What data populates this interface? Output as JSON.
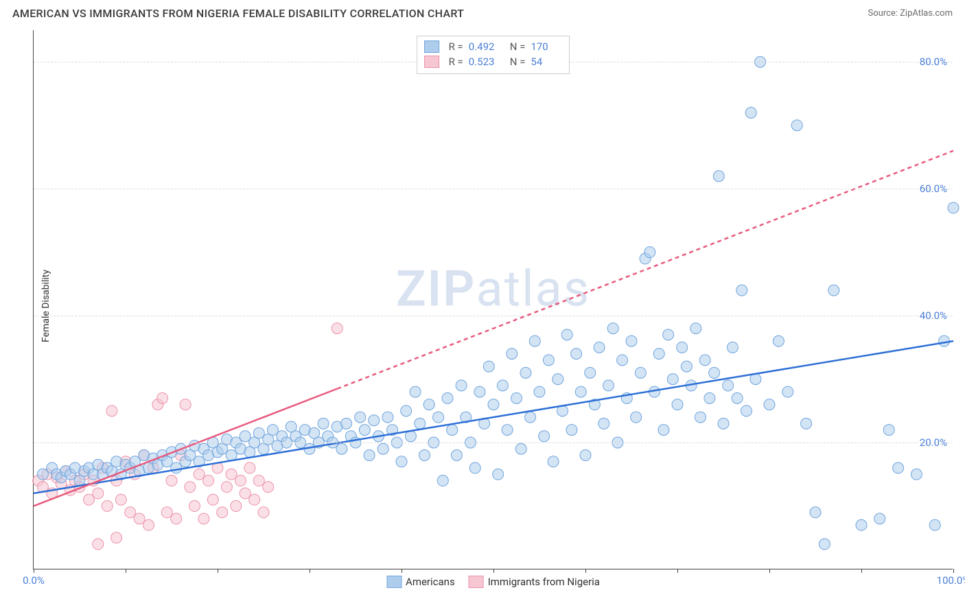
{
  "header": {
    "title": "AMERICAN VS IMMIGRANTS FROM NIGERIA FEMALE DISABILITY CORRELATION CHART",
    "source": "Source: ZipAtlas.com"
  },
  "chart": {
    "type": "scatter",
    "ylabel": "Female Disability",
    "watermark_bold": "ZIP",
    "watermark_rest": "atlas",
    "background_color": "#ffffff",
    "grid_color": "#dcdcdc",
    "axis_color": "#444444",
    "tick_label_color": "#4a7fd6",
    "xlim": [
      0,
      100
    ],
    "ylim": [
      0,
      85
    ],
    "xtick_positions": [
      0,
      10,
      20,
      30,
      40,
      50,
      60,
      70,
      80,
      90,
      100
    ],
    "xaxis_labels": [
      {
        "pos": 0,
        "text": "0.0%"
      },
      {
        "pos": 100,
        "text": "100.0%"
      }
    ],
    "ytick_labels": [
      {
        "val": 20,
        "text": "20.0%"
      },
      {
        "val": 40,
        "text": "40.0%"
      },
      {
        "val": 60,
        "text": "60.0%"
      },
      {
        "val": 80,
        "text": "80.0%"
      }
    ],
    "series": {
      "americans": {
        "label": "Americans",
        "fill_color": "#aecded",
        "stroke_color": "#6fa4dd",
        "line_color": "#2d6fd6",
        "marker_radius": 8,
        "marker_opacity": 0.55,
        "R": "0.492",
        "N": "170",
        "trend": {
          "x1": 0,
          "y1": 12,
          "x2": 100,
          "y2": 36,
          "dashed_from_x": null
        },
        "points": [
          [
            1,
            15
          ],
          [
            2,
            16
          ],
          [
            2.5,
            15
          ],
          [
            3,
            14.5
          ],
          [
            3.5,
            15.5
          ],
          [
            4,
            15
          ],
          [
            4.5,
            16
          ],
          [
            5,
            14
          ],
          [
            5.5,
            15.5
          ],
          [
            6,
            16
          ],
          [
            6.5,
            15
          ],
          [
            7,
            16.5
          ],
          [
            7.5,
            15
          ],
          [
            8,
            16
          ],
          [
            8.5,
            15.5
          ],
          [
            9,
            17
          ],
          [
            9.5,
            15
          ],
          [
            10,
            16.5
          ],
          [
            10.5,
            16
          ],
          [
            11,
            17
          ],
          [
            11.5,
            15.5
          ],
          [
            12,
            18
          ],
          [
            12.5,
            16
          ],
          [
            13,
            17.5
          ],
          [
            13.5,
            16.5
          ],
          [
            14,
            18
          ],
          [
            14.5,
            17
          ],
          [
            15,
            18.5
          ],
          [
            15.5,
            16
          ],
          [
            16,
            19
          ],
          [
            16.5,
            17
          ],
          [
            17,
            18
          ],
          [
            17.5,
            19.5
          ],
          [
            18,
            17
          ],
          [
            18.5,
            19
          ],
          [
            19,
            18
          ],
          [
            19.5,
            20
          ],
          [
            20,
            18.5
          ],
          [
            20.5,
            19
          ],
          [
            21,
            20.5
          ],
          [
            21.5,
            18
          ],
          [
            22,
            20
          ],
          [
            22.5,
            19
          ],
          [
            23,
            21
          ],
          [
            23.5,
            18.5
          ],
          [
            24,
            20
          ],
          [
            24.5,
            21.5
          ],
          [
            25,
            19
          ],
          [
            25.5,
            20.5
          ],
          [
            26,
            22
          ],
          [
            26.5,
            19.5
          ],
          [
            27,
            21
          ],
          [
            27.5,
            20
          ],
          [
            28,
            22.5
          ],
          [
            28.5,
            21
          ],
          [
            29,
            20
          ],
          [
            29.5,
            22
          ],
          [
            30,
            19
          ],
          [
            30.5,
            21.5
          ],
          [
            31,
            20
          ],
          [
            31.5,
            23
          ],
          [
            32,
            21
          ],
          [
            32.5,
            20
          ],
          [
            33,
            22.5
          ],
          [
            33.5,
            19
          ],
          [
            34,
            23
          ],
          [
            34.5,
            21
          ],
          [
            35,
            20
          ],
          [
            35.5,
            24
          ],
          [
            36,
            22
          ],
          [
            36.5,
            18
          ],
          [
            37,
            23.5
          ],
          [
            37.5,
            21
          ],
          [
            38,
            19
          ],
          [
            38.5,
            24
          ],
          [
            39,
            22
          ],
          [
            39.5,
            20
          ],
          [
            40,
            17
          ],
          [
            40.5,
            25
          ],
          [
            41,
            21
          ],
          [
            41.5,
            28
          ],
          [
            42,
            23
          ],
          [
            42.5,
            18
          ],
          [
            43,
            26
          ],
          [
            43.5,
            20
          ],
          [
            44,
            24
          ],
          [
            44.5,
            14
          ],
          [
            45,
            27
          ],
          [
            45.5,
            22
          ],
          [
            46,
            18
          ],
          [
            46.5,
            29
          ],
          [
            47,
            24
          ],
          [
            47.5,
            20
          ],
          [
            48,
            16
          ],
          [
            48.5,
            28
          ],
          [
            49,
            23
          ],
          [
            49.5,
            32
          ],
          [
            50,
            26
          ],
          [
            50.5,
            15
          ],
          [
            51,
            29
          ],
          [
            51.5,
            22
          ],
          [
            52,
            34
          ],
          [
            52.5,
            27
          ],
          [
            53,
            19
          ],
          [
            53.5,
            31
          ],
          [
            54,
            24
          ],
          [
            54.5,
            36
          ],
          [
            55,
            28
          ],
          [
            55.5,
            21
          ],
          [
            56,
            33
          ],
          [
            56.5,
            17
          ],
          [
            57,
            30
          ],
          [
            57.5,
            25
          ],
          [
            58,
            37
          ],
          [
            58.5,
            22
          ],
          [
            59,
            34
          ],
          [
            59.5,
            28
          ],
          [
            60,
            18
          ],
          [
            60.5,
            31
          ],
          [
            61,
            26
          ],
          [
            61.5,
            35
          ],
          [
            62,
            23
          ],
          [
            62.5,
            29
          ],
          [
            63,
            38
          ],
          [
            63.5,
            20
          ],
          [
            64,
            33
          ],
          [
            64.5,
            27
          ],
          [
            65,
            36
          ],
          [
            65.5,
            24
          ],
          [
            66,
            31
          ],
          [
            66.5,
            49
          ],
          [
            67,
            50
          ],
          [
            67.5,
            28
          ],
          [
            68,
            34
          ],
          [
            68.5,
            22
          ],
          [
            69,
            37
          ],
          [
            69.5,
            30
          ],
          [
            70,
            26
          ],
          [
            70.5,
            35
          ],
          [
            71,
            32
          ],
          [
            71.5,
            29
          ],
          [
            72,
            38
          ],
          [
            72.5,
            24
          ],
          [
            73,
            33
          ],
          [
            73.5,
            27
          ],
          [
            74,
            31
          ],
          [
            74.5,
            62
          ],
          [
            75,
            23
          ],
          [
            75.5,
            29
          ],
          [
            76,
            35
          ],
          [
            76.5,
            27
          ],
          [
            77,
            44
          ],
          [
            77.5,
            25
          ],
          [
            78,
            72
          ],
          [
            78.5,
            30
          ],
          [
            79,
            80
          ],
          [
            80,
            26
          ],
          [
            81,
            36
          ],
          [
            82,
            28
          ],
          [
            83,
            70
          ],
          [
            84,
            23
          ],
          [
            85,
            9
          ],
          [
            86,
            4
          ],
          [
            87,
            44
          ],
          [
            90,
            7
          ],
          [
            92,
            8
          ],
          [
            93,
            22
          ],
          [
            94,
            16
          ],
          [
            96,
            15
          ],
          [
            98,
            7
          ],
          [
            100,
            57
          ],
          [
            99,
            36
          ]
        ]
      },
      "immigrants": {
        "label": "Immigrants from Nigeria",
        "fill_color": "#f6c7d2",
        "stroke_color": "#ec92aa",
        "line_color": "#e85a7d",
        "marker_radius": 8,
        "marker_opacity": 0.55,
        "R": "0.523",
        "N": "54",
        "trend": {
          "x1": 0,
          "y1": 10,
          "x2": 100,
          "y2": 66,
          "solid_until_x": 33
        },
        "points": [
          [
            0.5,
            14
          ],
          [
            1,
            13
          ],
          [
            1.5,
            15
          ],
          [
            2,
            12
          ],
          [
            2.5,
            14.5
          ],
          [
            3,
            13.5
          ],
          [
            3.5,
            15.5
          ],
          [
            4,
            12.5
          ],
          [
            4.5,
            14
          ],
          [
            5,
            13
          ],
          [
            5.5,
            15
          ],
          [
            6,
            11
          ],
          [
            6.5,
            14
          ],
          [
            7,
            12
          ],
          [
            7.5,
            16
          ],
          [
            8,
            10
          ],
          [
            8.5,
            25
          ],
          [
            9,
            14
          ],
          [
            9.5,
            11
          ],
          [
            10,
            17
          ],
          [
            10.5,
            9
          ],
          [
            11,
            15
          ],
          [
            11.5,
            8
          ],
          [
            12,
            18
          ],
          [
            12.5,
            7
          ],
          [
            13,
            16
          ],
          [
            13.5,
            26
          ],
          [
            14,
            27
          ],
          [
            14.5,
            9
          ],
          [
            15,
            14
          ],
          [
            15.5,
            8
          ],
          [
            16,
            18
          ],
          [
            16.5,
            26
          ],
          [
            17,
            13
          ],
          [
            17.5,
            10
          ],
          [
            18,
            15
          ],
          [
            18.5,
            8
          ],
          [
            19,
            14
          ],
          [
            19.5,
            11
          ],
          [
            20,
            16
          ],
          [
            20.5,
            9
          ],
          [
            21,
            13
          ],
          [
            21.5,
            15
          ],
          [
            22,
            10
          ],
          [
            22.5,
            14
          ],
          [
            23,
            12
          ],
          [
            23.5,
            16
          ],
          [
            24,
            11
          ],
          [
            24.5,
            14
          ],
          [
            25,
            9
          ],
          [
            25.5,
            13
          ],
          [
            33,
            38
          ],
          [
            7,
            4
          ],
          [
            9,
            5
          ]
        ]
      }
    }
  }
}
